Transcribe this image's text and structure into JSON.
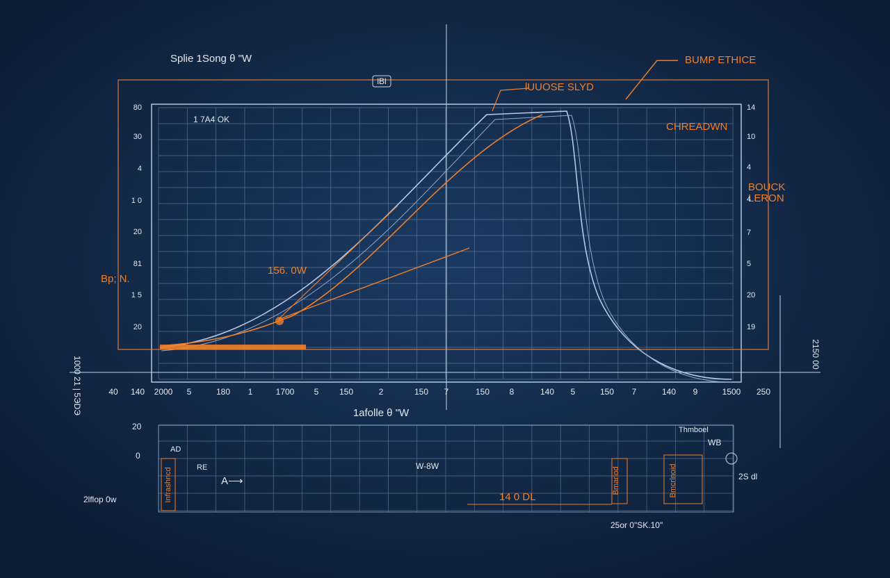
{
  "header": {
    "title": "Splie 1Song θ \"W",
    "box": "lBl"
  },
  "callouts": {
    "top": "lUUOSE SLYD",
    "top_right": "BUMP ETHICE",
    "right": "CHREADWN",
    "right_2a": "BOUCK",
    "right_2b": "LERON",
    "left": "Bp; N.",
    "peak": "156. 0W",
    "inner": "1 7A4 OK"
  },
  "left_axis": [
    "80",
    "30",
    "4",
    "1 0",
    "20",
    "81",
    "1 5",
    "20"
  ],
  "right_axis": [
    "14",
    "10",
    "4",
    "4",
    "7",
    "5",
    "20",
    "19"
  ],
  "bottom_axis": [
    "40",
    "140",
    "2000",
    "5",
    "180",
    "1",
    "1700",
    "5",
    "150",
    "2",
    "150",
    "7",
    "150",
    "8",
    "140",
    "5",
    "150",
    "7",
    "140",
    "9",
    "1500",
    "250"
  ],
  "x_title": "1afolle θ \"W",
  "side": {
    "right_vertical": "2150 00",
    "left_vertical": "1000 21 | 5ЭDЭ"
  },
  "lower": {
    "t20": "20",
    "t0": "0",
    "ad": "AD",
    "re": "RE",
    "arrow": "A⟶",
    "w8w": "W-8W",
    "dl": "14 0 DL",
    "thmb": "Thmboel",
    "wb": "WB",
    "sdl": "2S dl",
    "flop": "2lflop 0w",
    "sk": "25or 0\"SK.10\"",
    "v1": "Infrashncd",
    "v2": "Bmarlod",
    "v3": "Bmcrlnoid"
  }
}
